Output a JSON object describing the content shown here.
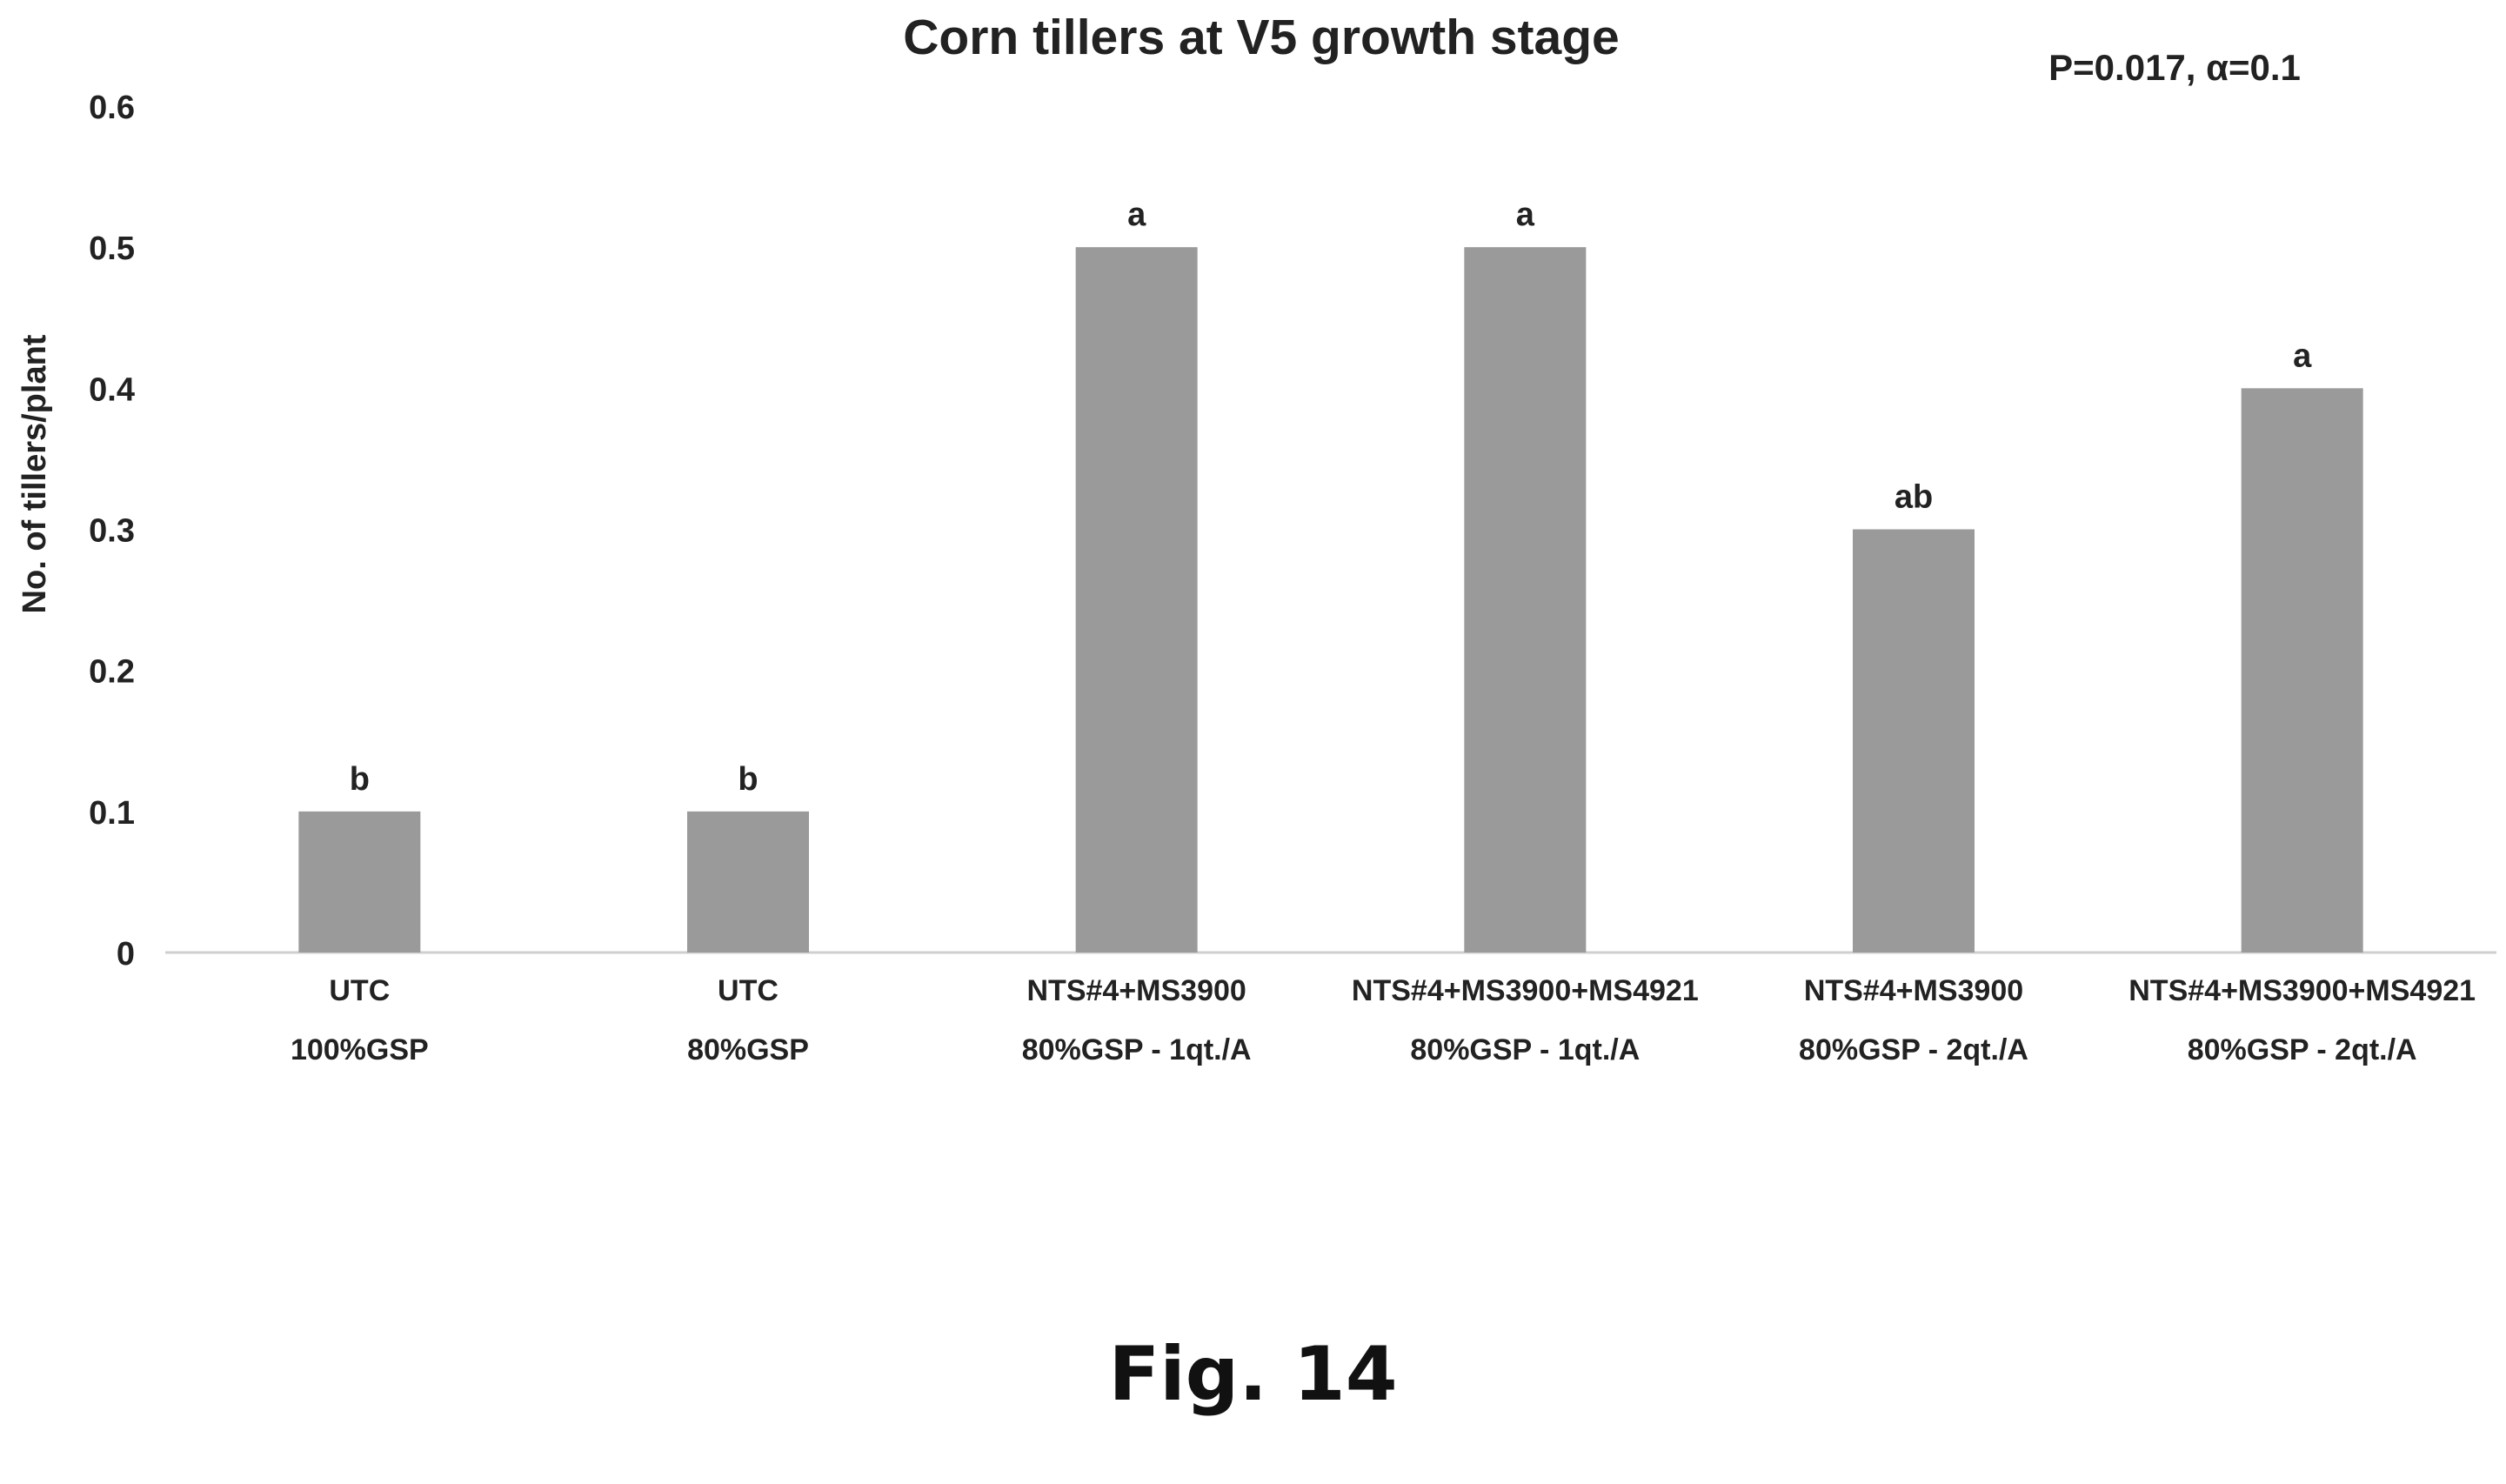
{
  "chart_data": {
    "type": "bar",
    "title": "Corn tillers at V5 growth stage",
    "annotation": "P=0.017, α=0.1",
    "ylabel": "No. of tillers/plant",
    "xlabel": "",
    "ylim": [
      0,
      0.6
    ],
    "yticks": [
      "0",
      "0.1",
      "0.2",
      "0.3",
      "0.4",
      "0.5",
      "0.6"
    ],
    "grid": false,
    "bar_color": "#9a9a9a",
    "categories": [
      [
        "UTC",
        "100%GSP"
      ],
      [
        "UTC",
        "80%GSP"
      ],
      [
        "NTS#4+MS3900",
        "80%GSP - 1qt./A"
      ],
      [
        "NTS#4+MS3900+MS4921",
        "80%GSP - 1qt./A"
      ],
      [
        "NTS#4+MS3900",
        "80%GSP - 2qt./A"
      ],
      [
        "NTS#4+MS3900+MS4921",
        "80%GSP - 2qt./A"
      ]
    ],
    "values": [
      0.1,
      0.1,
      0.5,
      0.5,
      0.3,
      0.4
    ],
    "data_labels": [
      "b",
      "b",
      "a",
      "a",
      "ab",
      "a"
    ]
  },
  "figure_caption": "Fig. 14"
}
